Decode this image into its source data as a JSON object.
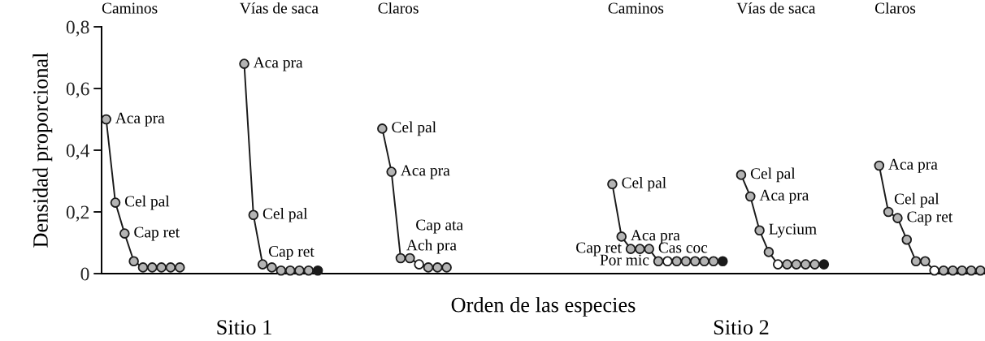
{
  "chart_data": {
    "type": "line",
    "ylabel": "Densidad proporcional",
    "xlabel": "Orden de las especies",
    "categories": [
      null,
      null,
      null,
      null,
      null,
      null,
      null,
      null,
      null,
      null,
      null,
      null,
      null,
      null,
      null,
      null,
      null,
      null,
      null,
      null,
      null,
      null,
      null,
      null,
      null,
      null,
      null,
      null,
      null,
      null,
      null,
      null,
      null,
      null,
      null,
      null,
      null,
      null,
      null,
      null,
      null,
      null,
      null,
      null,
      null,
      null,
      null,
      null,
      null,
      null,
      null,
      null,
      null,
      null,
      null,
      null,
      null,
      null,
      null,
      null,
      null,
      null,
      null,
      null,
      null,
      null,
      null,
      null,
      null,
      null,
      null,
      null,
      null,
      null,
      null,
      null,
      null,
      null,
      null,
      null,
      null,
      null,
      null,
      null,
      null,
      null,
      null,
      null,
      null,
      null,
      null,
      null,
      null,
      null,
      null,
      null
    ],
    "ylim": [
      0,
      0.8
    ],
    "yticks": [
      0,
      {
        "value": 0.2,
        "label": "0,2"
      },
      {
        "value": 0.4,
        "label": "0,4"
      },
      {
        "value": 0.6,
        "label": "0,6"
      },
      {
        "value": 0.8,
        "label": "0,8"
      }
    ],
    "grid": false,
    "marker": "circle",
    "line_style": "solid",
    "tick_labels": "y",
    "annotations": [
      "Caminos",
      "Vías de saca",
      "Claros",
      "Caminos",
      "Vías de saca",
      "Claros",
      "Sitio 1",
      "Sitio 2"
    ],
    "series": [
      {
        "color": "#1a1a1a",
        "values": [
          0.5,
          0.23,
          0.13,
          0.04,
          0.02,
          0.02,
          0.02,
          0.02,
          0.02,
          null,
          null,
          null,
          null,
          null,
          null,
          null,
          null,
          null,
          null,
          null,
          null,
          null,
          null,
          null,
          null,
          null,
          null,
          null,
          null,
          null,
          null,
          null,
          null,
          null,
          null,
          null,
          null,
          null,
          null,
          null,
          null,
          null,
          null,
          null,
          null,
          null,
          null,
          null,
          null,
          null,
          null,
          null,
          null,
          null,
          null,
          null,
          null,
          null,
          null,
          null,
          null,
          null,
          null,
          null,
          null,
          null,
          null,
          null,
          null,
          null,
          null,
          null,
          null,
          null,
          null,
          null,
          null,
          null,
          null,
          null,
          null,
          null,
          null,
          null,
          null,
          null,
          null,
          null,
          null,
          null,
          null,
          null,
          null,
          null,
          null,
          null
        ],
        "colors": [
          "#b4b4b4",
          "#b4b4b4",
          "#b4b4b4",
          "#b4b4b4",
          "#b4b4b4",
          "#b4b4b4",
          "#b4b4b4",
          "#b4b4b4",
          "#b4b4b4",
          null,
          null,
          null,
          null,
          null,
          null,
          null,
          null,
          null,
          null,
          null,
          null,
          null,
          null,
          null,
          null,
          null,
          null,
          null,
          null,
          null,
          null,
          null,
          null,
          null,
          null,
          null,
          null,
          null,
          null,
          null,
          null,
          null,
          null,
          null,
          null,
          null,
          null,
          null,
          null,
          null,
          null,
          null,
          null,
          null,
          null,
          null,
          null,
          null,
          null,
          null,
          null,
          null,
          null,
          null,
          null,
          null,
          null,
          null,
          null,
          null,
          null,
          null,
          null,
          null,
          null,
          null,
          null,
          null,
          null,
          null,
          null,
          null,
          null,
          null,
          null,
          null,
          null,
          null,
          null,
          null,
          null,
          null,
          null,
          null,
          null,
          null
        ],
        "value_labels": [
          "Aca pra",
          "Cel pal",
          "Cap ret",
          null,
          null,
          null,
          null,
          null,
          null,
          null,
          null,
          null,
          null,
          null,
          null,
          null,
          null,
          null,
          null,
          null,
          null,
          null,
          null,
          null,
          null,
          null,
          null,
          null,
          null,
          null,
          null,
          null,
          null,
          null,
          null,
          null,
          null,
          null,
          null,
          null,
          null,
          null,
          null,
          null,
          null,
          null,
          null,
          null,
          null,
          null,
          null,
          null,
          null,
          null,
          null,
          null,
          null,
          null,
          null,
          null,
          null,
          null,
          null,
          null,
          null,
          null,
          null,
          null,
          null,
          null,
          null,
          null,
          null,
          null,
          null,
          null,
          null,
          null,
          null,
          null,
          null,
          null,
          null,
          null,
          null,
          null,
          null,
          null,
          null,
          null,
          null,
          null,
          null,
          null,
          null,
          null
        ]
      },
      {
        "color": "#1a1a1a",
        "values": [
          null,
          null,
          null,
          null,
          null,
          null,
          null,
          null,
          null,
          null,
          null,
          null,
          null,
          null,
          null,
          0.68,
          0.19,
          0.03,
          0.02,
          0.01,
          0.01,
          0.01,
          0.01,
          0.01,
          null,
          null,
          null,
          null,
          null,
          null,
          null,
          null,
          null,
          null,
          null,
          null,
          null,
          null,
          null,
          null,
          null,
          null,
          null,
          null,
          null,
          null,
          null,
          null,
          null,
          null,
          null,
          null,
          null,
          null,
          null,
          null,
          null,
          null,
          null,
          null,
          null,
          null,
          null,
          null,
          null,
          null,
          null,
          null,
          null,
          null,
          null,
          null,
          null,
          null,
          null,
          null,
          null,
          null,
          null,
          null,
          null,
          null,
          null,
          null,
          null,
          null,
          null,
          null,
          null,
          null,
          null,
          null,
          null,
          null,
          null,
          null
        ],
        "colors": [
          null,
          null,
          null,
          null,
          null,
          null,
          null,
          null,
          null,
          null,
          null,
          null,
          null,
          null,
          null,
          "#b4b4b4",
          "#b4b4b4",
          "#b4b4b4",
          "#b4b4b4",
          "#b4b4b4",
          "#b4b4b4",
          "#b4b4b4",
          "#b4b4b4",
          "#1a1a1a",
          null,
          null,
          null,
          null,
          null,
          null,
          null,
          null,
          null,
          null,
          null,
          null,
          null,
          null,
          null,
          null,
          null,
          null,
          null,
          null,
          null,
          null,
          null,
          null,
          null,
          null,
          null,
          null,
          null,
          null,
          null,
          null,
          null,
          null,
          null,
          null,
          null,
          null,
          null,
          null,
          null,
          null,
          null,
          null,
          null,
          null,
          null,
          null,
          null,
          null,
          null,
          null,
          null,
          null,
          null,
          null,
          null,
          null,
          null,
          null,
          null,
          null,
          null,
          null,
          null,
          null,
          null,
          null,
          null,
          null,
          null,
          null
        ],
        "value_labels": [
          null,
          null,
          null,
          null,
          null,
          null,
          null,
          null,
          null,
          null,
          null,
          null,
          null,
          null,
          null,
          "Aca pra",
          "Cel pal",
          "Cap ret",
          null,
          null,
          null,
          null,
          null,
          null,
          null,
          null,
          null,
          null,
          null,
          null,
          null,
          null,
          null,
          null,
          null,
          null,
          null,
          null,
          null,
          null,
          null,
          null,
          null,
          null,
          null,
          null,
          null,
          null,
          null,
          null,
          null,
          null,
          null,
          null,
          null,
          null,
          null,
          null,
          null,
          null,
          null,
          null,
          null,
          null,
          null,
          null,
          null,
          null,
          null,
          null,
          null,
          null,
          null,
          null,
          null,
          null,
          null,
          null,
          null,
          null,
          null,
          null,
          null,
          null,
          null,
          null,
          null,
          null,
          null,
          null,
          null,
          null,
          null,
          null,
          null,
          null
        ]
      },
      {
        "color": "#1a1a1a",
        "values": [
          null,
          null,
          null,
          null,
          null,
          null,
          null,
          null,
          null,
          null,
          null,
          null,
          null,
          null,
          null,
          null,
          null,
          null,
          null,
          null,
          null,
          null,
          null,
          null,
          null,
          null,
          null,
          null,
          null,
          null,
          0.47,
          0.33,
          0.05,
          0.05,
          0.03,
          0.02,
          0.02,
          0.02,
          null,
          null,
          null,
          null,
          null,
          null,
          null,
          null,
          null,
          null,
          null,
          null,
          null,
          null,
          null,
          null,
          null,
          null,
          null,
          null,
          null,
          null,
          null,
          null,
          null,
          null,
          null,
          null,
          null,
          null,
          null,
          null,
          null,
          null,
          null,
          null,
          null,
          null,
          null,
          null,
          null,
          null,
          null,
          null,
          null,
          null,
          null,
          null,
          null,
          null,
          null,
          null,
          null,
          null,
          null,
          null,
          null,
          null
        ],
        "colors": [
          null,
          null,
          null,
          null,
          null,
          null,
          null,
          null,
          null,
          null,
          null,
          null,
          null,
          null,
          null,
          null,
          null,
          null,
          null,
          null,
          null,
          null,
          null,
          null,
          null,
          null,
          null,
          null,
          null,
          null,
          "#b4b4b4",
          "#b4b4b4",
          "#b4b4b4",
          "#b4b4b4",
          "#ffffff",
          "#b4b4b4",
          "#b4b4b4",
          "#b4b4b4",
          null,
          null,
          null,
          null,
          null,
          null,
          null,
          null,
          null,
          null,
          null,
          null,
          null,
          null,
          null,
          null,
          null,
          null,
          null,
          null,
          null,
          null,
          null,
          null,
          null,
          null,
          null,
          null,
          null,
          null,
          null,
          null,
          null,
          null,
          null,
          null,
          null,
          null,
          null,
          null,
          null,
          null,
          null,
          null,
          null,
          null,
          null,
          null,
          null,
          null,
          null,
          null,
          null,
          null,
          null,
          null,
          null,
          null
        ],
        "value_labels": [
          null,
          null,
          null,
          null,
          null,
          null,
          null,
          null,
          null,
          null,
          null,
          null,
          null,
          null,
          null,
          null,
          null,
          null,
          null,
          null,
          null,
          null,
          null,
          null,
          null,
          null,
          null,
          null,
          null,
          null,
          "Cel pal",
          "Aca pra",
          "Ach pra",
          "Cap ata",
          null,
          null,
          null,
          null,
          null,
          null,
          null,
          null,
          null,
          null,
          null,
          null,
          null,
          null,
          null,
          null,
          null,
          null,
          null,
          null,
          null,
          null,
          null,
          null,
          null,
          null,
          null,
          null,
          null,
          null,
          null,
          null,
          null,
          null,
          null,
          null,
          null,
          null,
          null,
          null,
          null,
          null,
          null,
          null,
          null,
          null,
          null,
          null,
          null,
          null,
          null,
          null,
          null,
          null,
          null,
          null,
          null,
          null,
          null,
          null,
          null,
          null
        ]
      },
      {
        "color": "#1a1a1a",
        "values": [
          null,
          null,
          null,
          null,
          null,
          null,
          null,
          null,
          null,
          null,
          null,
          null,
          null,
          null,
          null,
          null,
          null,
          null,
          null,
          null,
          null,
          null,
          null,
          null,
          null,
          null,
          null,
          null,
          null,
          null,
          null,
          null,
          null,
          null,
          null,
          null,
          null,
          null,
          null,
          null,
          null,
          null,
          null,
          null,
          null,
          null,
          null,
          null,
          null,
          null,
          null,
          null,
          null,
          null,
          null,
          0.29,
          0.12,
          0.08,
          0.08,
          0.08,
          0.04,
          0.04,
          0.04,
          0.04,
          0.04,
          0.04,
          0.04,
          0.04,
          null,
          null,
          null,
          null,
          null,
          null,
          null,
          null,
          null,
          null,
          null,
          null,
          null,
          null,
          null,
          null,
          null,
          null,
          null,
          null,
          null,
          null,
          null,
          null,
          null,
          null,
          null,
          null
        ],
        "colors": [
          null,
          null,
          null,
          null,
          null,
          null,
          null,
          null,
          null,
          null,
          null,
          null,
          null,
          null,
          null,
          null,
          null,
          null,
          null,
          null,
          null,
          null,
          null,
          null,
          null,
          null,
          null,
          null,
          null,
          null,
          null,
          null,
          null,
          null,
          null,
          null,
          null,
          null,
          null,
          null,
          null,
          null,
          null,
          null,
          null,
          null,
          null,
          null,
          null,
          null,
          null,
          null,
          null,
          null,
          null,
          "#b4b4b4",
          "#b4b4b4",
          "#b4b4b4",
          "#b4b4b4",
          "#b4b4b4",
          "#b4b4b4",
          "#ffffff",
          "#b4b4b4",
          "#b4b4b4",
          "#b4b4b4",
          "#b4b4b4",
          "#b4b4b4",
          "#1a1a1a",
          null,
          null,
          null,
          null,
          null,
          null,
          null,
          null,
          null,
          null,
          null,
          null,
          null,
          null,
          null,
          null,
          null,
          null,
          null,
          null,
          null,
          null,
          null,
          null,
          null,
          null,
          null,
          null
        ],
        "value_labels": [
          null,
          null,
          null,
          null,
          null,
          null,
          null,
          null,
          null,
          null,
          null,
          null,
          null,
          null,
          null,
          null,
          null,
          null,
          null,
          null,
          null,
          null,
          null,
          null,
          null,
          null,
          null,
          null,
          null,
          null,
          null,
          null,
          null,
          null,
          null,
          null,
          null,
          null,
          null,
          null,
          null,
          null,
          null,
          null,
          null,
          null,
          null,
          null,
          null,
          null,
          null,
          null,
          null,
          null,
          null,
          "Cel pal",
          "Aca pra",
          "Cap ret",
          null,
          "Cas coc",
          "Por mic",
          null,
          null,
          null,
          null,
          null,
          null,
          null,
          null,
          null,
          null,
          null,
          null,
          null,
          null,
          null,
          null,
          null,
          null,
          null,
          null,
          null,
          null,
          null,
          null,
          null,
          null,
          null,
          null,
          null,
          null,
          null,
          null,
          null,
          null,
          null
        ]
      },
      {
        "color": "#1a1a1a",
        "values": [
          null,
          null,
          null,
          null,
          null,
          null,
          null,
          null,
          null,
          null,
          null,
          null,
          null,
          null,
          null,
          null,
          null,
          null,
          null,
          null,
          null,
          null,
          null,
          null,
          null,
          null,
          null,
          null,
          null,
          null,
          null,
          null,
          null,
          null,
          null,
          null,
          null,
          null,
          null,
          null,
          null,
          null,
          null,
          null,
          null,
          null,
          null,
          null,
          null,
          null,
          null,
          null,
          null,
          null,
          null,
          null,
          null,
          null,
          null,
          null,
          null,
          null,
          null,
          null,
          null,
          null,
          null,
          null,
          null,
          0.32,
          0.25,
          0.14,
          0.07,
          0.03,
          0.03,
          0.03,
          0.03,
          0.03,
          0.03,
          null,
          null,
          null,
          null,
          null,
          null,
          null,
          null,
          null,
          null,
          null,
          null,
          null,
          null,
          null,
          null,
          null
        ],
        "colors": [
          null,
          null,
          null,
          null,
          null,
          null,
          null,
          null,
          null,
          null,
          null,
          null,
          null,
          null,
          null,
          null,
          null,
          null,
          null,
          null,
          null,
          null,
          null,
          null,
          null,
          null,
          null,
          null,
          null,
          null,
          null,
          null,
          null,
          null,
          null,
          null,
          null,
          null,
          null,
          null,
          null,
          null,
          null,
          null,
          null,
          null,
          null,
          null,
          null,
          null,
          null,
          null,
          null,
          null,
          null,
          null,
          null,
          null,
          null,
          null,
          null,
          null,
          null,
          null,
          null,
          null,
          null,
          null,
          null,
          "#b4b4b4",
          "#b4b4b4",
          "#b4b4b4",
          "#b4b4b4",
          "#ffffff",
          "#b4b4b4",
          "#b4b4b4",
          "#b4b4b4",
          "#b4b4b4",
          "#1a1a1a",
          null,
          null,
          null,
          null,
          null,
          null,
          null,
          null,
          null,
          null,
          null,
          null,
          null,
          null,
          null,
          null,
          null
        ],
        "value_labels": [
          null,
          null,
          null,
          null,
          null,
          null,
          null,
          null,
          null,
          null,
          null,
          null,
          null,
          null,
          null,
          null,
          null,
          null,
          null,
          null,
          null,
          null,
          null,
          null,
          null,
          null,
          null,
          null,
          null,
          null,
          null,
          null,
          null,
          null,
          null,
          null,
          null,
          null,
          null,
          null,
          null,
          null,
          null,
          null,
          null,
          null,
          null,
          null,
          null,
          null,
          null,
          null,
          null,
          null,
          null,
          null,
          null,
          null,
          null,
          null,
          null,
          null,
          null,
          null,
          null,
          null,
          null,
          null,
          null,
          "Cel pal",
          "Aca pra",
          "Lycium",
          null,
          null,
          null,
          null,
          null,
          null,
          null,
          null,
          null,
          null,
          null,
          null,
          null,
          null,
          null,
          null,
          null,
          null,
          null,
          null,
          null,
          null,
          null,
          null
        ]
      },
      {
        "color": "#1a1a1a",
        "values": [
          null,
          null,
          null,
          null,
          null,
          null,
          null,
          null,
          null,
          null,
          null,
          null,
          null,
          null,
          null,
          null,
          null,
          null,
          null,
          null,
          null,
          null,
          null,
          null,
          null,
          null,
          null,
          null,
          null,
          null,
          null,
          null,
          null,
          null,
          null,
          null,
          null,
          null,
          null,
          null,
          null,
          null,
          null,
          null,
          null,
          null,
          null,
          null,
          null,
          null,
          null,
          null,
          null,
          null,
          null,
          null,
          null,
          null,
          null,
          null,
          null,
          null,
          null,
          null,
          null,
          null,
          null,
          null,
          null,
          null,
          null,
          null,
          null,
          null,
          null,
          null,
          null,
          null,
          null,
          null,
          null,
          null,
          null,
          null,
          0.35,
          0.2,
          0.18,
          0.11,
          0.04,
          0.04,
          0.01,
          0.01,
          0.01,
          0.01,
          0.01,
          0.01
        ],
        "colors": [
          null,
          null,
          null,
          null,
          null,
          null,
          null,
          null,
          null,
          null,
          null,
          null,
          null,
          null,
          null,
          null,
          null,
          null,
          null,
          null,
          null,
          null,
          null,
          null,
          null,
          null,
          null,
          null,
          null,
          null,
          null,
          null,
          null,
          null,
          null,
          null,
          null,
          null,
          null,
          null,
          null,
          null,
          null,
          null,
          null,
          null,
          null,
          null,
          null,
          null,
          null,
          null,
          null,
          null,
          null,
          null,
          null,
          null,
          null,
          null,
          null,
          null,
          null,
          null,
          null,
          null,
          null,
          null,
          null,
          null,
          null,
          null,
          null,
          null,
          null,
          null,
          null,
          null,
          null,
          null,
          null,
          null,
          null,
          null,
          "#b4b4b4",
          "#b4b4b4",
          "#b4b4b4",
          "#b4b4b4",
          "#b4b4b4",
          "#b4b4b4",
          "#ffffff",
          "#b4b4b4",
          "#b4b4b4",
          "#b4b4b4",
          "#b4b4b4",
          "#b4b4b4"
        ],
        "value_labels": [
          null,
          null,
          null,
          null,
          null,
          null,
          null,
          null,
          null,
          null,
          null,
          null,
          null,
          null,
          null,
          null,
          null,
          null,
          null,
          null,
          null,
          null,
          null,
          null,
          null,
          null,
          null,
          null,
          null,
          null,
          null,
          null,
          null,
          null,
          null,
          null,
          null,
          null,
          null,
          null,
          null,
          null,
          null,
          null,
          null,
          null,
          null,
          null,
          null,
          null,
          null,
          null,
          null,
          null,
          null,
          null,
          null,
          null,
          null,
          null,
          null,
          null,
          null,
          null,
          null,
          null,
          null,
          null,
          null,
          null,
          null,
          null,
          null,
          null,
          null,
          null,
          null,
          null,
          null,
          null,
          null,
          null,
          null,
          null,
          "Aca pra",
          "Cel pal",
          "Cap ret",
          null,
          null,
          null,
          null,
          null,
          null,
          null,
          null,
          null
        ]
      }
    ]
  }
}
